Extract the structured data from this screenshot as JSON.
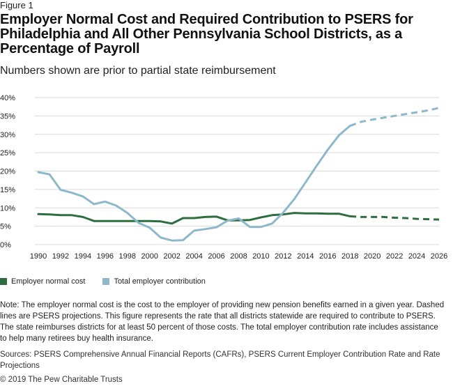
{
  "figure_label": "Figure 1",
  "subtitle": "Numbers shown are prior to partial state reimbursement",
  "legend": [
    {
      "label": "Employer normal cost",
      "color": "#2e6e3e"
    },
    {
      "label": "Total employer contribution",
      "color": "#8db8cb"
    }
  ],
  "note": "Note: The employer normal cost is the cost to the employer of providing new pension benefits earned in a given year. Dashed lines are PSERS projections. This figure represents the rate that all districts statewide are required to contribute to PSERS. The state reimburses districts for at least 50 percent of those costs. The total employer contribution rate includes assistance to help many retirees buy health insurance.",
  "sources": "Sources: PSERS Comprehensive Annual Financial Reports (CAFRs), PSERS Current Employer Contribution Rate and Rate Projections",
  "copyright": "© 2019 The Pew Charitable Trusts",
  "chart_data": {
    "type": "line",
    "title": "Employer Normal Cost and Required Contribution to PSERS for Philadelphia and All Other Pennsylvania School Districts, as a Percentage of Payroll",
    "xlabel": "",
    "ylabel": "",
    "xlim": [
      1990,
      2026
    ],
    "ylim": [
      0,
      40
    ],
    "x_ticks": [
      1990,
      1992,
      1994,
      1996,
      1998,
      2000,
      2002,
      2004,
      2006,
      2008,
      2010,
      2012,
      2014,
      2016,
      2018,
      2020,
      2022,
      2024,
      2026
    ],
    "y_ticks": [
      0,
      5,
      10,
      15,
      20,
      25,
      30,
      35,
      40
    ],
    "y_tick_labels": [
      "0%",
      "5%",
      "10%",
      "15%",
      "20%",
      "25%",
      "30%",
      "35%",
      "40%"
    ],
    "grid": true,
    "series": [
      {
        "name": "Employer normal cost",
        "color": "#2e6e3e",
        "actual": {
          "x": [
            1990,
            1991,
            1992,
            1993,
            1994,
            1995,
            1996,
            1997,
            1998,
            1999,
            2000,
            2001,
            2002,
            2003,
            2004,
            2005,
            2006,
            2007,
            2008,
            2009,
            2010,
            2011,
            2012,
            2013,
            2014,
            2015,
            2016,
            2017,
            2018
          ],
          "y": [
            8.3,
            8.2,
            8.0,
            8.0,
            7.5,
            6.4,
            6.4,
            6.4,
            6.4,
            6.4,
            6.4,
            6.3,
            5.7,
            7.2,
            7.2,
            7.5,
            7.6,
            6.6,
            6.6,
            6.7,
            7.4,
            8.0,
            8.2,
            8.6,
            8.5,
            8.5,
            8.4,
            8.4,
            7.7
          ]
        },
        "projected": {
          "x": [
            2018,
            2019,
            2020,
            2021,
            2022,
            2023,
            2024,
            2025,
            2026
          ],
          "y": [
            7.7,
            7.5,
            7.5,
            7.5,
            7.3,
            7.2,
            7.0,
            6.9,
            6.8
          ]
        }
      },
      {
        "name": "Total employer contribution",
        "color": "#8db8cb",
        "actual": {
          "x": [
            1990,
            1991,
            1992,
            1993,
            1994,
            1995,
            1996,
            1997,
            1998,
            1999,
            2000,
            2001,
            2002,
            2003,
            2004,
            2005,
            2006,
            2007,
            2008,
            2009,
            2010,
            2011,
            2012,
            2013,
            2014,
            2015,
            2016,
            2017,
            2018
          ],
          "y": [
            19.7,
            19.1,
            14.9,
            14.1,
            13.1,
            11.0,
            11.7,
            10.6,
            8.6,
            5.9,
            4.6,
            1.9,
            1.1,
            1.2,
            3.8,
            4.2,
            4.7,
            6.5,
            7.1,
            4.8,
            4.8,
            5.7,
            8.7,
            12.4,
            16.9,
            21.4,
            25.8,
            29.7,
            32.3
          ]
        },
        "projected": {
          "x": [
            2018,
            2019,
            2020,
            2021,
            2022,
            2023,
            2024,
            2025,
            2026
          ],
          "y": [
            32.3,
            33.4,
            34.0,
            34.5,
            35.0,
            35.5,
            36.0,
            36.5,
            37.2
          ]
        }
      }
    ]
  }
}
